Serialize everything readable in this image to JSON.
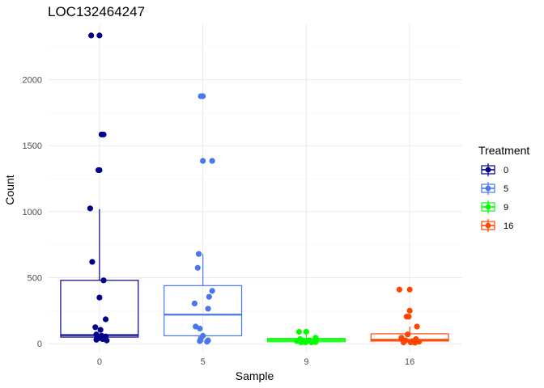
{
  "chart_data": {
    "type": "box",
    "title": "LOC132464247",
    "xlabel": "Sample",
    "ylabel": "Count",
    "categories": [
      "0",
      "5",
      "9",
      "16"
    ],
    "ylim": [
      -60,
      2420
    ],
    "yticks": [
      0,
      500,
      1000,
      1500,
      2000
    ],
    "grid": true,
    "legend": {
      "title": "Treatment",
      "placement": "right",
      "entries": [
        "0",
        "5",
        "9",
        "16"
      ]
    },
    "colors": {
      "0": "#00008B",
      "5": "#4A76EA",
      "9": "#00FF00",
      "16": "#FF4500"
    },
    "series": [
      {
        "name": "0",
        "box": {
          "q1": 50,
          "median": 65,
          "q3": 480,
          "whisker_low": 20,
          "whisker_high": 1020
        },
        "points": [
          {
            "jitter": -0.08,
            "y": 2335
          },
          {
            "jitter": 0.0,
            "y": 2335
          },
          {
            "jitter": 0.02,
            "y": 1585
          },
          {
            "jitter": 0.04,
            "y": 1585
          },
          {
            "jitter": 0.0,
            "y": 1315
          },
          {
            "jitter": -0.01,
            "y": 1315
          },
          {
            "jitter": -0.09,
            "y": 1025
          },
          {
            "jitter": -0.07,
            "y": 620
          },
          {
            "jitter": 0.04,
            "y": 480
          },
          {
            "jitter": 0.0,
            "y": 350
          },
          {
            "jitter": 0.06,
            "y": 185
          },
          {
            "jitter": -0.04,
            "y": 125
          },
          {
            "jitter": 0.01,
            "y": 105
          },
          {
            "jitter": -0.03,
            "y": 70
          },
          {
            "jitter": 0.02,
            "y": 60
          },
          {
            "jitter": 0.06,
            "y": 55
          },
          {
            "jitter": -0.02,
            "y": 45
          },
          {
            "jitter": 0.03,
            "y": 35
          },
          {
            "jitter": -0.03,
            "y": 30
          },
          {
            "jitter": 0.07,
            "y": 25
          }
        ]
      },
      {
        "name": "5",
        "box": {
          "q1": 60,
          "median": 220,
          "q3": 440,
          "whisker_low": 15,
          "whisker_high": 680
        },
        "points": [
          {
            "jitter": -0.02,
            "y": 1875
          },
          {
            "jitter": 0.0,
            "y": 1875
          },
          {
            "jitter": 0.0,
            "y": 1385
          },
          {
            "jitter": 0.09,
            "y": 1385
          },
          {
            "jitter": -0.04,
            "y": 680
          },
          {
            "jitter": -0.05,
            "y": 575
          },
          {
            "jitter": 0.09,
            "y": 400
          },
          {
            "jitter": 0.06,
            "y": 355
          },
          {
            "jitter": -0.08,
            "y": 305
          },
          {
            "jitter": 0.05,
            "y": 265
          },
          {
            "jitter": -0.07,
            "y": 130
          },
          {
            "jitter": -0.03,
            "y": 115
          },
          {
            "jitter": 0.0,
            "y": 60
          },
          {
            "jitter": -0.02,
            "y": 40
          },
          {
            "jitter": 0.05,
            "y": 25
          },
          {
            "jitter": 0.04,
            "y": 15
          },
          {
            "jitter": -0.03,
            "y": 20
          }
        ]
      },
      {
        "name": "9",
        "box": {
          "q1": 15,
          "median": 28,
          "q3": 40,
          "whisker_low": 5,
          "whisker_high": 75
        },
        "points": [
          {
            "jitter": -0.07,
            "y": 90
          },
          {
            "jitter": 0.0,
            "y": 90
          },
          {
            "jitter": 0.09,
            "y": 45
          },
          {
            "jitter": -0.06,
            "y": 35
          },
          {
            "jitter": -0.04,
            "y": 25
          },
          {
            "jitter": 0.03,
            "y": 25
          },
          {
            "jitter": -0.09,
            "y": 20
          },
          {
            "jitter": 0.07,
            "y": 15
          },
          {
            "jitter": -0.01,
            "y": 10
          },
          {
            "jitter": 0.05,
            "y": 10
          },
          {
            "jitter": -0.05,
            "y": 10
          },
          {
            "jitter": 0.0,
            "y": 15
          },
          {
            "jitter": 0.09,
            "y": 12
          }
        ]
      },
      {
        "name": "16",
        "box": {
          "q1": 20,
          "median": 30,
          "q3": 75,
          "whisker_low": 5,
          "whisker_high": 130
        },
        "points": [
          {
            "jitter": -0.1,
            "y": 410
          },
          {
            "jitter": 0.0,
            "y": 410
          },
          {
            "jitter": 0.0,
            "y": 250
          },
          {
            "jitter": -0.03,
            "y": 205
          },
          {
            "jitter": -0.01,
            "y": 205
          },
          {
            "jitter": 0.07,
            "y": 130
          },
          {
            "jitter": -0.02,
            "y": 70
          },
          {
            "jitter": -0.08,
            "y": 45
          },
          {
            "jitter": 0.06,
            "y": 35
          },
          {
            "jitter": -0.04,
            "y": 25
          },
          {
            "jitter": 0.03,
            "y": 20
          },
          {
            "jitter": 0.09,
            "y": 15
          },
          {
            "jitter": -0.06,
            "y": 10
          },
          {
            "jitter": 0.01,
            "y": 10
          },
          {
            "jitter": 0.05,
            "y": 8
          }
        ]
      }
    ]
  }
}
